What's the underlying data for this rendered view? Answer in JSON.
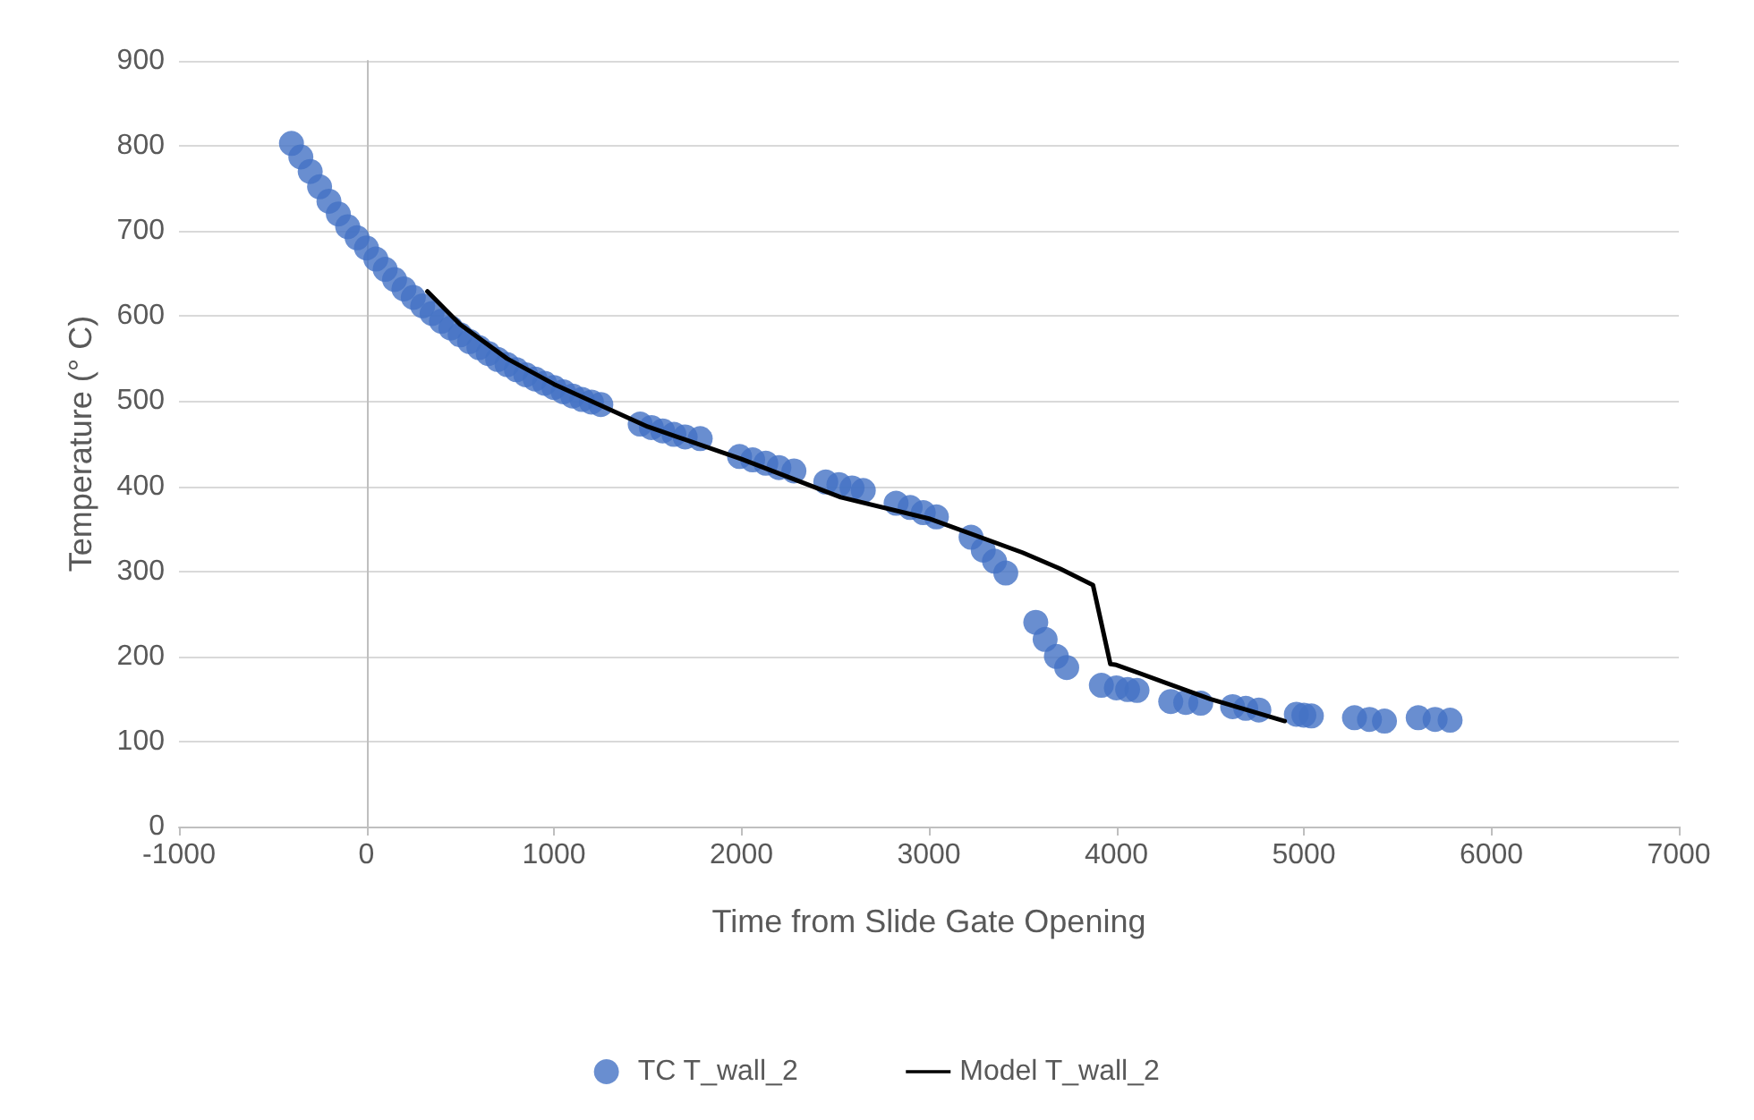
{
  "chart_data": {
    "type": "scatter",
    "xlabel": "Time from Slide Gate Opening",
    "ylabel": "Temperature (° C)",
    "xlim": [
      -1000,
      7000
    ],
    "xticks": [
      -1000,
      0,
      1000,
      2000,
      3000,
      4000,
      5000,
      6000,
      7000
    ],
    "ylim": [
      0,
      900
    ],
    "yticks": [
      0,
      100,
      200,
      300,
      400,
      500,
      600,
      700,
      800,
      900
    ],
    "grid": "y",
    "legend": "bottom",
    "series": [
      {
        "name": "TC T_wall_2",
        "marker": "circle",
        "color": "#4472c4",
        "x": [
          -400,
          -350,
          -300,
          -250,
          -200,
          -150,
          -100,
          -50,
          0,
          50,
          100,
          150,
          200,
          250,
          300,
          350,
          400,
          450,
          500,
          550,
          600,
          650,
          700,
          750,
          800,
          850,
          900,
          950,
          1000,
          1050,
          1100,
          1150,
          1200,
          1250,
          1460,
          1520,
          1580,
          1640,
          1700,
          1780,
          1990,
          2060,
          2130,
          2200,
          2280,
          2450,
          2520,
          2590,
          2650,
          2825,
          2900,
          2970,
          3040,
          3225,
          3290,
          3350,
          3410,
          3570,
          3620,
          3680,
          3735,
          3920,
          4000,
          4060,
          4110,
          4290,
          4370,
          4450,
          4620,
          4690,
          4760,
          4960,
          5000,
          5040,
          5270,
          5350,
          5430,
          5610,
          5700,
          5780
        ],
        "values": [
          803,
          787,
          770,
          752,
          735,
          720,
          705,
          692,
          680,
          667,
          655,
          643,
          632,
          622,
          612,
          603,
          594,
          586,
          578,
          570,
          563,
          556,
          549,
          543,
          537,
          531,
          526,
          521,
          516,
          511,
          506,
          502,
          499,
          496,
          473,
          469,
          465,
          461,
          458,
          456,
          435,
          431,
          427,
          422,
          418,
          405,
          402,
          398,
          395,
          380,
          375,
          369,
          364,
          340,
          325,
          312,
          298,
          240,
          220,
          200,
          187,
          166,
          163,
          161,
          160,
          147,
          146,
          145,
          141,
          139,
          137,
          132,
          131,
          130,
          128,
          126,
          124,
          128,
          126,
          125
        ]
      },
      {
        "name": "Model T_wall_2",
        "type": "line",
        "marker": "none",
        "line_style": "solid",
        "color": "#000000",
        "x": [
          325,
          500,
          750,
          1000,
          1500,
          2000,
          2530,
          3000,
          3500,
          3700,
          3875,
          3968,
          4000,
          4500,
          4898
        ],
        "values": [
          629,
          590,
          550,
          520,
          470,
          432,
          387,
          362,
          322,
          303,
          284,
          191,
          190,
          150,
          124
        ]
      }
    ]
  }
}
